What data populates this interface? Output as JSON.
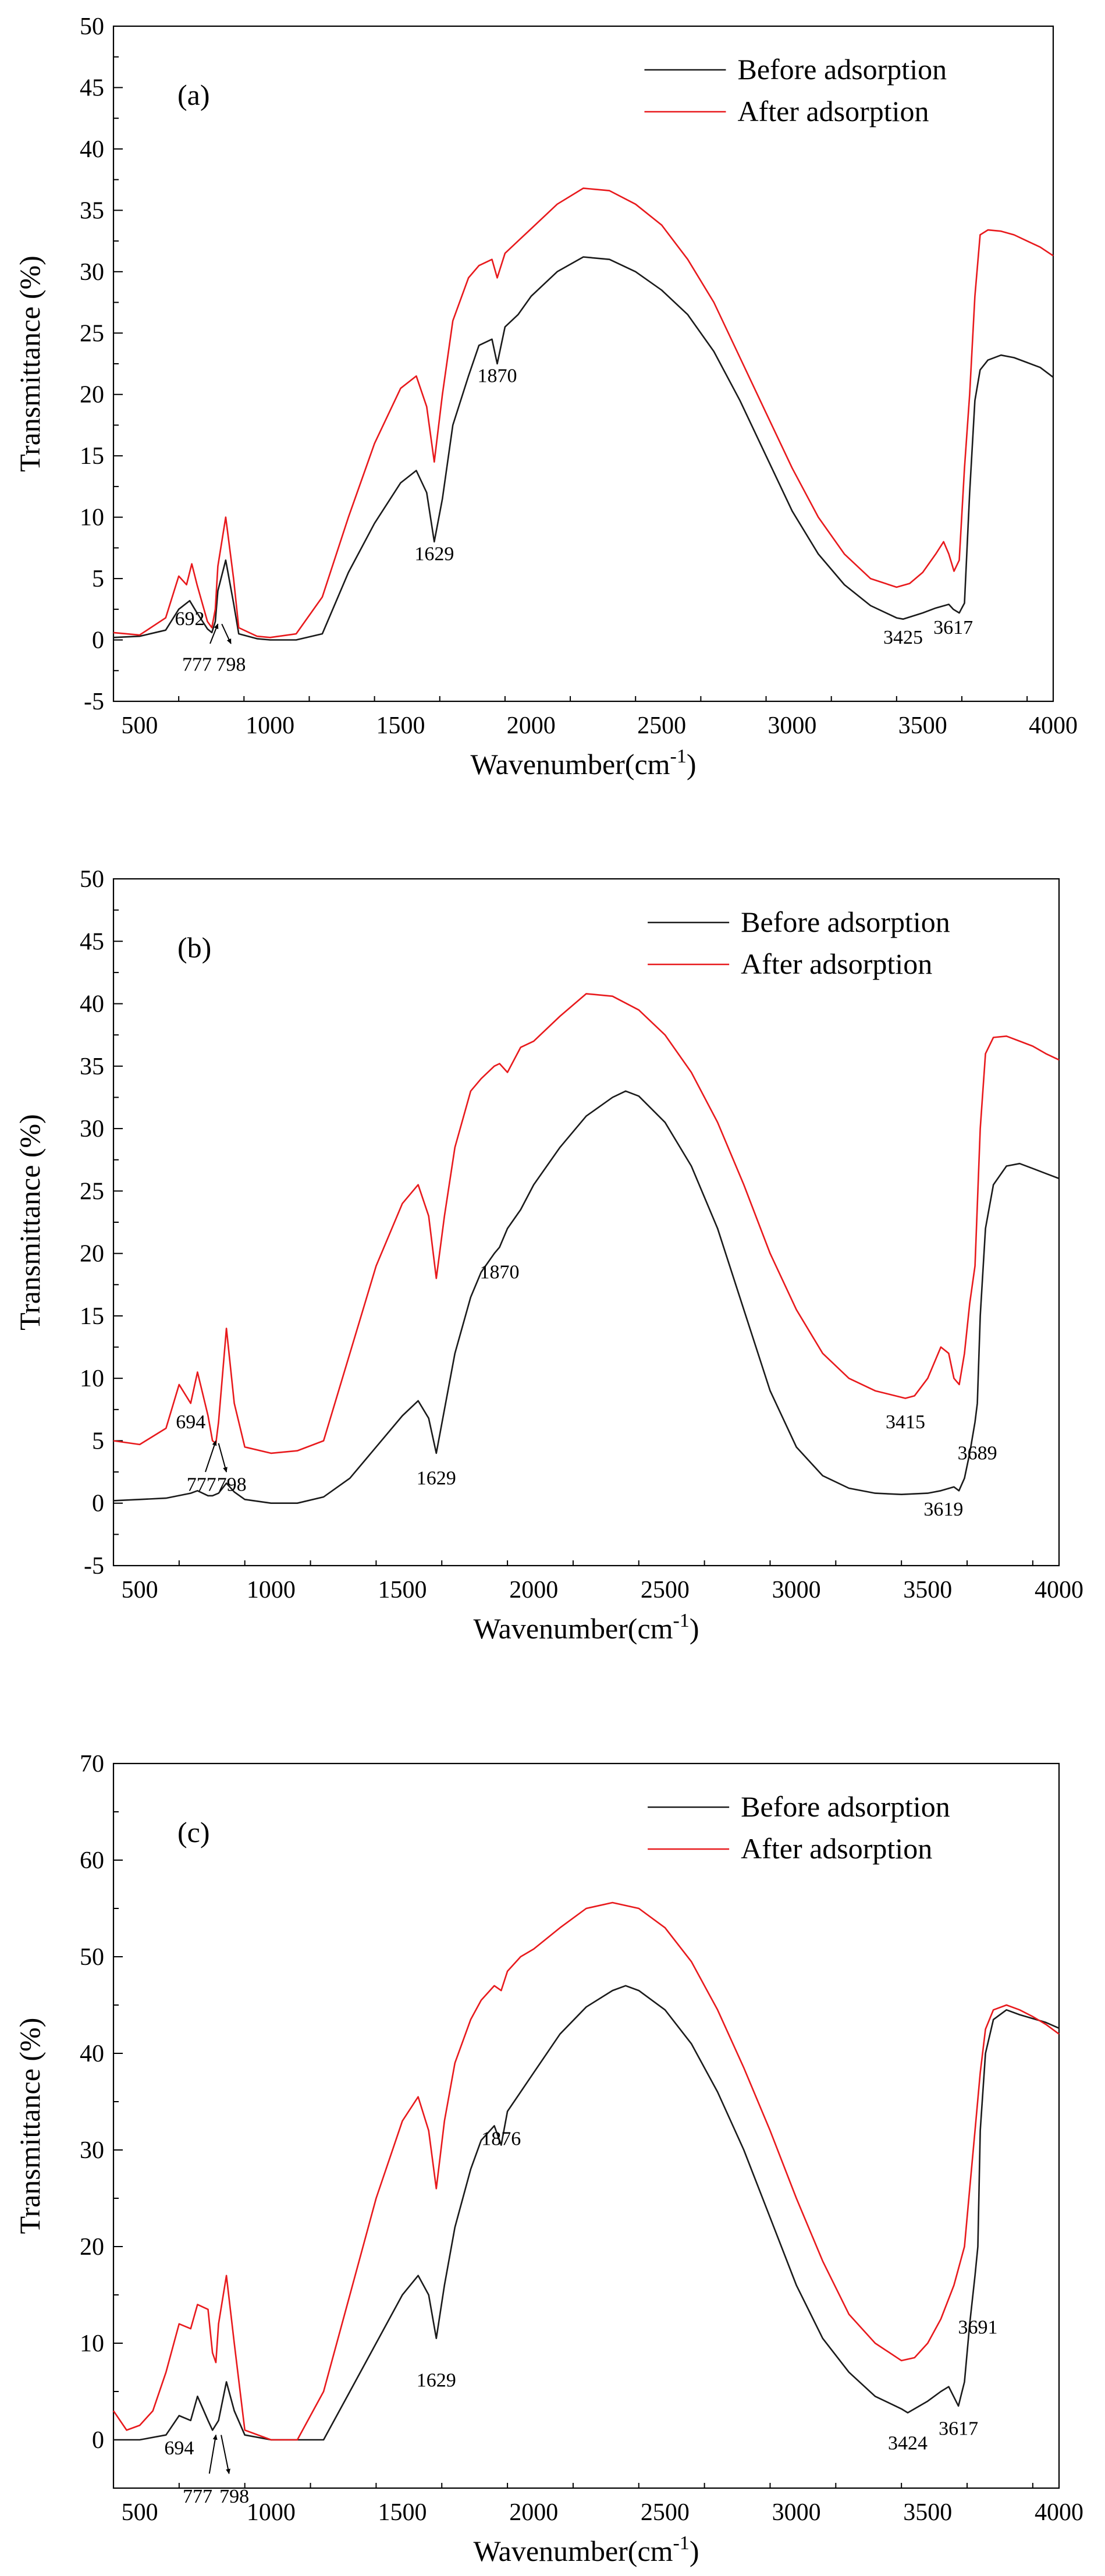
{
  "colors": {
    "before": "#1a1a1a",
    "after": "#e8191c",
    "axis": "#000000"
  },
  "chart_data": [
    {
      "type": "line",
      "panel_label": "(a)",
      "title": "",
      "xlabel": "Wavenumber(cm",
      "xlabel_sup": "-1",
      "xlabel_close": ")",
      "ylabel": "Transmittance (%)",
      "xlim": [
        400,
        4000
      ],
      "ylim": [
        -5,
        50
      ],
      "xticks": [
        500,
        1000,
        1500,
        2000,
        2500,
        3000,
        3500,
        4000
      ],
      "yticks": [
        -5,
        0,
        5,
        10,
        15,
        20,
        25,
        30,
        35,
        40,
        45,
        50
      ],
      "legend": "top-right",
      "series": [
        {
          "name": "Before adsorption",
          "color_key": "before",
          "x": [
            400,
            500,
            600,
            650,
            692,
            720,
            760,
            777,
            790,
            800,
            830,
            860,
            880,
            950,
            1000,
            1100,
            1200,
            1300,
            1400,
            1500,
            1560,
            1600,
            1629,
            1660,
            1700,
            1760,
            1800,
            1850,
            1870,
            1900,
            1950,
            2000,
            2100,
            2200,
            2300,
            2400,
            2500,
            2600,
            2700,
            2800,
            2900,
            3000,
            3100,
            3200,
            3300,
            3400,
            3425,
            3500,
            3550,
            3600,
            3617,
            3640,
            3660,
            3680,
            3700,
            3720,
            3750,
            3800,
            3850,
            3900,
            3950,
            4000
          ],
          "y": [
            0.2,
            0.3,
            0.8,
            2.5,
            3.2,
            2.2,
            0.9,
            0.6,
            1.5,
            4.0,
            6.5,
            3.0,
            0.5,
            0.1,
            0.0,
            0.0,
            0.5,
            5.5,
            9.5,
            12.8,
            13.8,
            12.0,
            8.0,
            11.5,
            17.5,
            21.5,
            24.0,
            24.5,
            22.5,
            25.5,
            26.5,
            28.0,
            30.0,
            31.2,
            31.0,
            30.0,
            28.5,
            26.5,
            23.5,
            19.5,
            15.0,
            10.5,
            7.0,
            4.5,
            2.8,
            1.8,
            1.7,
            2.2,
            2.6,
            2.9,
            2.5,
            2.2,
            3.0,
            12.0,
            19.5,
            22.0,
            22.8,
            23.2,
            23.0,
            22.6,
            22.2,
            21.4
          ]
        },
        {
          "name": "After adsorption",
          "color_key": "after",
          "x": [
            400,
            500,
            600,
            650,
            680,
            700,
            720,
            760,
            777,
            790,
            800,
            830,
            860,
            880,
            950,
            1000,
            1100,
            1200,
            1300,
            1400,
            1500,
            1560,
            1600,
            1629,
            1660,
            1700,
            1760,
            1800,
            1850,
            1870,
            1900,
            1950,
            2000,
            2100,
            2200,
            2300,
            2400,
            2500,
            2600,
            2700,
            2800,
            2900,
            3000,
            3100,
            3200,
            3300,
            3400,
            3450,
            3500,
            3550,
            3580,
            3600,
            3620,
            3640,
            3660,
            3680,
            3700,
            3720,
            3750,
            3800,
            3850,
            3900,
            3950,
            4000
          ],
          "y": [
            0.6,
            0.4,
            1.8,
            5.2,
            4.5,
            6.2,
            4.5,
            1.5,
            1.0,
            2.5,
            6.0,
            10.0,
            5.0,
            1.0,
            0.3,
            0.2,
            0.5,
            3.5,
            10.0,
            16.0,
            20.5,
            21.5,
            19.0,
            14.5,
            20.0,
            26.0,
            29.5,
            30.5,
            31.0,
            29.5,
            31.5,
            32.5,
            33.5,
            35.5,
            36.8,
            36.6,
            35.5,
            33.8,
            31.0,
            27.5,
            23.0,
            18.5,
            14.0,
            10.0,
            7.0,
            5.0,
            4.3,
            4.6,
            5.5,
            7.0,
            8.0,
            7.0,
            5.6,
            6.5,
            14.0,
            20.0,
            28.0,
            33.0,
            33.4,
            33.3,
            33.0,
            32.5,
            32.0,
            31.3
          ]
        }
      ],
      "annotations": [
        {
          "text": "692",
          "x": 692,
          "y": 1.2
        },
        {
          "text": "777",
          "x": 720,
          "y": -2.5
        },
        {
          "text": "798",
          "x": 850,
          "y": -2.5
        },
        {
          "text": "1629",
          "x": 1629,
          "y": 6.5
        },
        {
          "text": "1870",
          "x": 1870,
          "y": 21.0
        },
        {
          "text": "3425",
          "x": 3425,
          "y": -0.3
        },
        {
          "text": "3617",
          "x": 3617,
          "y": 0.5
        }
      ],
      "arrows": [
        {
          "x1": 770,
          "y1": -0.3,
          "x2": 800,
          "y2": 1.3
        },
        {
          "x1": 815,
          "y1": 1.3,
          "x2": 850,
          "y2": -0.3
        }
      ]
    },
    {
      "type": "line",
      "panel_label": "(b)",
      "title": "",
      "xlabel": "Wavenumber(cm",
      "xlabel_sup": "-1",
      "xlabel_close": ")",
      "ylabel": "Transmittance (%)",
      "xlim": [
        400,
        4000
      ],
      "ylim": [
        -5,
        50
      ],
      "xticks": [
        500,
        1000,
        1500,
        2000,
        2500,
        3000,
        3500,
        4000
      ],
      "yticks": [
        -5,
        0,
        5,
        10,
        15,
        20,
        25,
        30,
        35,
        40,
        45,
        50
      ],
      "legend": "top-right",
      "series": [
        {
          "name": "Before adsorption",
          "color_key": "before",
          "x": [
            400,
            500,
            600,
            694,
            720,
            760,
            777,
            800,
            830,
            860,
            900,
            1000,
            1100,
            1200,
            1300,
            1400,
            1500,
            1560,
            1600,
            1629,
            1660,
            1700,
            1760,
            1800,
            1850,
            1870,
            1900,
            1950,
            2000,
            2100,
            2200,
            2300,
            2350,
            2400,
            2500,
            2600,
            2700,
            2800,
            2900,
            3000,
            3100,
            3200,
            3300,
            3400,
            3500,
            3550,
            3600,
            3619,
            3640,
            3660,
            3680,
            3689,
            3700,
            3720,
            3750,
            3800,
            3850,
            3900,
            3950,
            4000
          ],
          "y": [
            0.2,
            0.3,
            0.4,
            0.8,
            1.0,
            0.6,
            0.6,
            0.8,
            1.6,
            0.9,
            0.3,
            0.0,
            0.0,
            0.5,
            2.0,
            4.5,
            7.0,
            8.2,
            6.8,
            4.0,
            7.5,
            12.0,
            16.5,
            18.5,
            20.0,
            20.5,
            22.0,
            23.5,
            25.5,
            28.5,
            31.0,
            32.5,
            33.0,
            32.6,
            30.5,
            27.0,
            22.0,
            15.5,
            9.0,
            4.5,
            2.2,
            1.2,
            0.8,
            0.7,
            0.8,
            1.0,
            1.3,
            1.0,
            2.0,
            4.0,
            6.5,
            8.0,
            15.0,
            22.0,
            25.5,
            27.0,
            27.2,
            26.8,
            26.4,
            26.0
          ]
        },
        {
          "name": "After adsorption",
          "color_key": "after",
          "x": [
            400,
            500,
            600,
            650,
            694,
            720,
            760,
            777,
            790,
            800,
            830,
            860,
            900,
            1000,
            1100,
            1200,
            1300,
            1400,
            1500,
            1560,
            1600,
            1629,
            1660,
            1700,
            1760,
            1800,
            1850,
            1870,
            1900,
            1950,
            2000,
            2100,
            2200,
            2300,
            2400,
            2500,
            2600,
            2700,
            2800,
            2900,
            3000,
            3100,
            3200,
            3300,
            3415,
            3450,
            3500,
            3550,
            3580,
            3600,
            3620,
            3640,
            3660,
            3680,
            3700,
            3720,
            3750,
            3800,
            3850,
            3900,
            3950,
            4000
          ],
          "y": [
            5.0,
            4.7,
            6.0,
            9.5,
            8.0,
            10.5,
            7.0,
            5.0,
            4.8,
            6.5,
            14.0,
            8.0,
            4.5,
            4.0,
            4.2,
            5.0,
            12.0,
            19.0,
            24.0,
            25.5,
            23.0,
            18.0,
            23.0,
            28.5,
            33.0,
            34.0,
            35.0,
            35.2,
            34.5,
            36.5,
            37.0,
            39.0,
            40.8,
            40.6,
            39.5,
            37.5,
            34.5,
            30.5,
            25.5,
            20.0,
            15.5,
            12.0,
            10.0,
            9.0,
            8.4,
            8.6,
            10.0,
            12.5,
            12.0,
            10.0,
            9.5,
            12.0,
            16.0,
            19.0,
            30.0,
            36.0,
            37.3,
            37.4,
            37.0,
            36.6,
            36.0,
            35.5
          ]
        }
      ],
      "annotations": [
        {
          "text": "694",
          "x": 694,
          "y": 6.0
        },
        {
          "text": "777",
          "x": 735,
          "y": 1.0
        },
        {
          "text": "798",
          "x": 850,
          "y": 1.0
        },
        {
          "text": "1629",
          "x": 1629,
          "y": 1.5
        },
        {
          "text": "1870",
          "x": 1870,
          "y": 18.0
        },
        {
          "text": "3415",
          "x": 3415,
          "y": 6.0
        },
        {
          "text": "3689",
          "x": 3689,
          "y": 3.5
        },
        {
          "text": "3619",
          "x": 3560,
          "y": -1.0
        }
      ],
      "arrows": [
        {
          "x1": 750,
          "y1": 2.5,
          "x2": 790,
          "y2": 5.0
        },
        {
          "x1": 800,
          "y1": 4.8,
          "x2": 830,
          "y2": 2.5
        }
      ]
    },
    {
      "type": "line",
      "panel_label": "(c)",
      "title": "",
      "xlabel": "Wavenumber(cm",
      "xlabel_sup": "-1",
      "xlabel_close": ")",
      "ylabel": "Transmittance (%)",
      "xlim": [
        400,
        4000
      ],
      "ylim": [
        -5,
        70
      ],
      "xticks": [
        500,
        1000,
        1500,
        2000,
        2500,
        3000,
        3500,
        4000
      ],
      "yticks": [
        0,
        10,
        20,
        30,
        40,
        50,
        60,
        70
      ],
      "legend": "top-right",
      "series": [
        {
          "name": "Before adsorption",
          "color_key": "before",
          "x": [
            400,
            500,
            600,
            650,
            694,
            720,
            760,
            777,
            800,
            830,
            860,
            900,
            1000,
            1100,
            1200,
            1300,
            1400,
            1500,
            1560,
            1600,
            1629,
            1660,
            1700,
            1760,
            1800,
            1850,
            1876,
            1900,
            1950,
            2000,
            2100,
            2200,
            2300,
            2350,
            2400,
            2500,
            2600,
            2700,
            2800,
            2900,
            3000,
            3100,
            3200,
            3300,
            3400,
            3424,
            3500,
            3550,
            3580,
            3617,
            3640,
            3660,
            3680,
            3691,
            3700,
            3720,
            3750,
            3800,
            3850,
            3900,
            3950,
            4000
          ],
          "y": [
            0.0,
            0.0,
            0.5,
            2.5,
            2.0,
            4.5,
            2.0,
            1.0,
            2.0,
            6.0,
            3.0,
            0.5,
            0.0,
            0.0,
            0.0,
            5.0,
            10.0,
            15.0,
            17.0,
            15.0,
            10.5,
            16.0,
            22.0,
            28.0,
            31.0,
            32.5,
            30.5,
            34.0,
            36.0,
            38.0,
            42.0,
            44.8,
            46.5,
            47.0,
            46.5,
            44.5,
            41.0,
            36.0,
            30.0,
            23.0,
            16.0,
            10.5,
            7.0,
            4.5,
            3.2,
            2.8,
            4.0,
            5.0,
            5.5,
            3.5,
            6.0,
            12.0,
            17.0,
            20.0,
            32.0,
            40.0,
            43.5,
            44.5,
            44.0,
            43.6,
            43.2,
            42.6
          ]
        },
        {
          "name": "After adsorption",
          "color_key": "after",
          "x": [
            400,
            450,
            500,
            550,
            600,
            650,
            694,
            720,
            760,
            777,
            790,
            800,
            830,
            860,
            900,
            1000,
            1100,
            1200,
            1300,
            1400,
            1500,
            1560,
            1600,
            1629,
            1660,
            1700,
            1760,
            1800,
            1850,
            1876,
            1900,
            1950,
            2000,
            2100,
            2200,
            2300,
            2400,
            2500,
            2600,
            2700,
            2800,
            2900,
            3000,
            3100,
            3200,
            3300,
            3400,
            3450,
            3500,
            3550,
            3600,
            3640,
            3660,
            3680,
            3700,
            3720,
            3750,
            3800,
            3850,
            3900,
            3950,
            4000
          ],
          "y": [
            3.0,
            1.0,
            1.5,
            3.0,
            7.0,
            12.0,
            11.5,
            14.0,
            13.5,
            9.0,
            8.0,
            12.0,
            17.0,
            10.0,
            1.0,
            0.0,
            0.0,
            5.0,
            15.0,
            25.0,
            33.0,
            35.5,
            32.0,
            26.0,
            33.0,
            39.0,
            43.5,
            45.5,
            47.0,
            46.5,
            48.5,
            50.0,
            50.8,
            53.0,
            55.0,
            55.6,
            55.0,
            53.0,
            49.5,
            44.5,
            38.5,
            32.0,
            25.0,
            18.5,
            13.0,
            10.0,
            8.2,
            8.5,
            10.0,
            12.5,
            16.0,
            20.0,
            26.0,
            32.0,
            38.0,
            42.5,
            44.5,
            45.0,
            44.5,
            43.8,
            43.0,
            42.0
          ]
        }
      ],
      "annotations": [
        {
          "text": "694",
          "x": 650,
          "y": -1.5
        },
        {
          "text": "777",
          "x": 720,
          "y": -6.5
        },
        {
          "text": "798",
          "x": 860,
          "y": -6.5
        },
        {
          "text": "1629",
          "x": 1629,
          "y": 5.5
        },
        {
          "text": "1876",
          "x": 1876,
          "y": 30.5
        },
        {
          "text": "3424",
          "x": 3424,
          "y": -1.0
        },
        {
          "text": "3617",
          "x": 3617,
          "y": 0.5
        },
        {
          "text": "3691",
          "x": 3691,
          "y": 11.0
        }
      ],
      "arrows": [
        {
          "x1": 765,
          "y1": -3.5,
          "x2": 790,
          "y2": 0.5
        },
        {
          "x1": 810,
          "y1": 0.5,
          "x2": 840,
          "y2": -3.5
        }
      ]
    }
  ]
}
